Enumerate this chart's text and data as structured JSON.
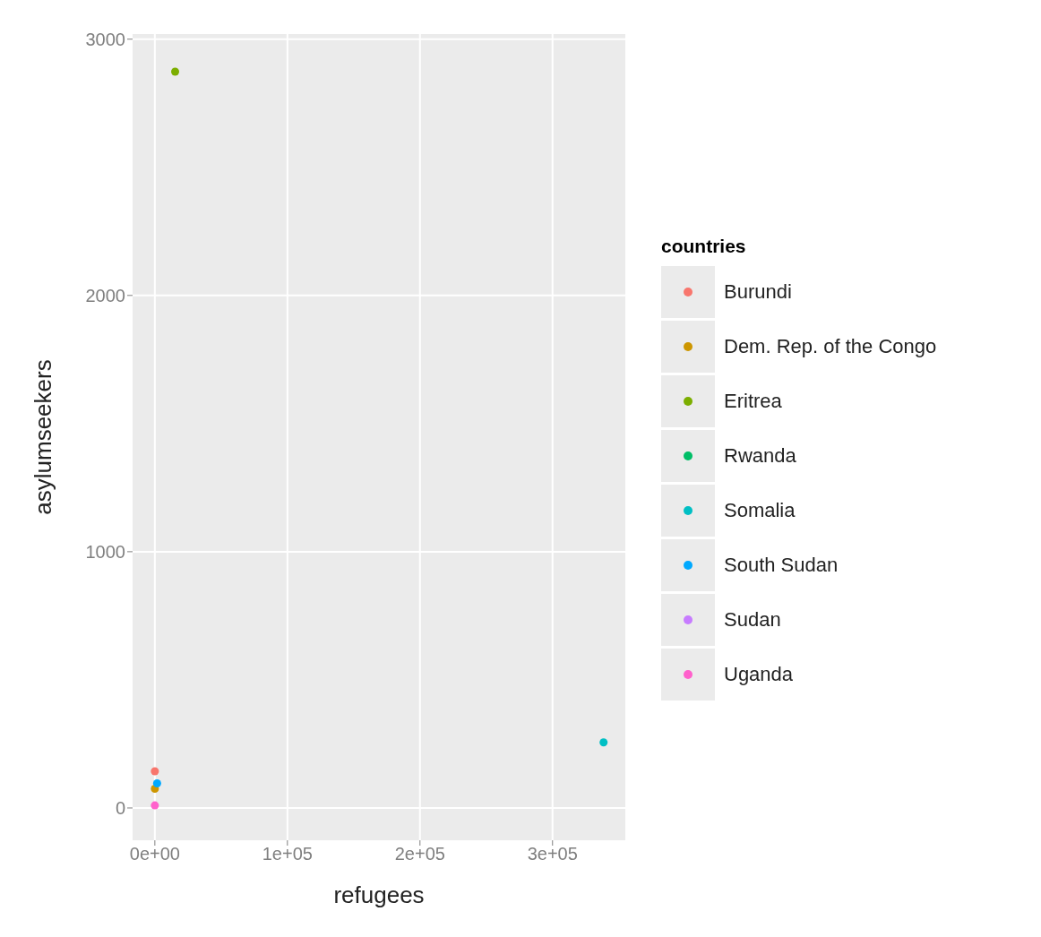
{
  "chart_data": {
    "type": "scatter",
    "xlabel": "refugees",
    "ylabel": "asylumseekers",
    "legend_title": "countries",
    "legend": "right",
    "grid": true,
    "xlim": [
      -16800,
      354900
    ],
    "ylim": [
      -126,
      3020
    ],
    "xticks": [
      {
        "value": 0,
        "label": "0e+00"
      },
      {
        "value": 100000,
        "label": "1e+05"
      },
      {
        "value": 200000,
        "label": "2e+05"
      },
      {
        "value": 300000,
        "label": "3e+05"
      }
    ],
    "yticks": [
      0,
      1000,
      2000,
      3000
    ],
    "series": [
      {
        "name": "Burundi",
        "color": "#f8766d",
        "x": [
          0
        ],
        "values": [
          143
        ]
      },
      {
        "name": "Dem. Rep. of the Congo",
        "color": "#cd9600",
        "x": [
          0
        ],
        "values": [
          75
        ]
      },
      {
        "name": "Eritrea",
        "color": "#7cae00",
        "x": [
          15300
        ],
        "values": [
          2873
        ]
      },
      {
        "name": "Rwanda",
        "color": "#00be67",
        "x": [
          null
        ],
        "values": [
          null
        ]
      },
      {
        "name": "Somalia",
        "color": "#00bfc4",
        "x": [
          338500
        ],
        "values": [
          256
        ]
      },
      {
        "name": "South Sudan",
        "color": "#00a9ff",
        "x": [
          1700
        ],
        "values": [
          96
        ]
      },
      {
        "name": "Sudan",
        "color": "#c77cff",
        "x": [
          null
        ],
        "values": [
          null
        ]
      },
      {
        "name": "Uganda",
        "color": "#ff61cc",
        "x": [
          0
        ],
        "values": [
          10
        ]
      }
    ]
  }
}
